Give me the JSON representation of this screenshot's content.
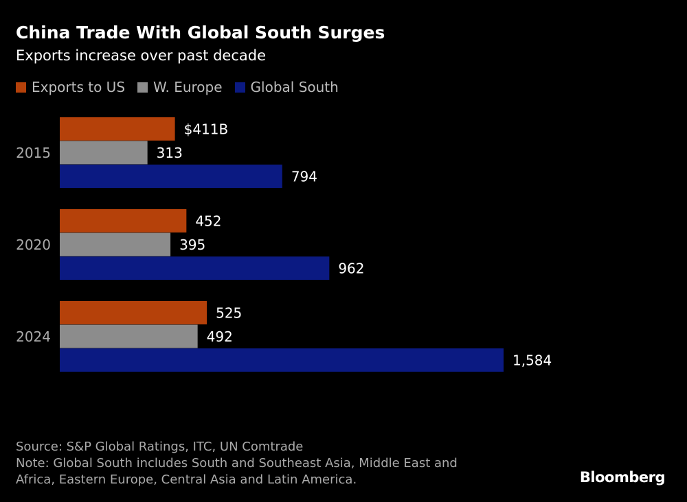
{
  "title": "China Trade With Global South Surges",
  "subtitle": "Exports increase over past decade",
  "chart_data": {
    "type": "bar",
    "orientation": "horizontal",
    "categories": [
      "2015",
      "2020",
      "2024"
    ],
    "series": [
      {
        "name": "Exports to US",
        "color": "#b5410a",
        "values": [
          411,
          452,
          525
        ],
        "labels": [
          "$411B",
          "452",
          "525"
        ]
      },
      {
        "name": "W. Europe",
        "color": "#8c8c8c",
        "values": [
          313,
          395,
          492
        ],
        "labels": [
          "313",
          "395",
          "492"
        ]
      },
      {
        "name": "Global South",
        "color": "#0b1a82",
        "values": [
          794,
          962,
          1584
        ],
        "labels": [
          "794",
          "962",
          "1,584"
        ]
      }
    ],
    "unit": "$B",
    "legend_position": "top-left",
    "grid": false
  },
  "footer": {
    "source": "Source: S&P Global Ratings, ITC, UN Comtrade",
    "note_line1": "Note: Global South includes South and Southeast Asia, Middle East and",
    "note_line2": "Africa, Eastern Europe, Central Asia and Latin America."
  },
  "logo": "Bloomberg"
}
